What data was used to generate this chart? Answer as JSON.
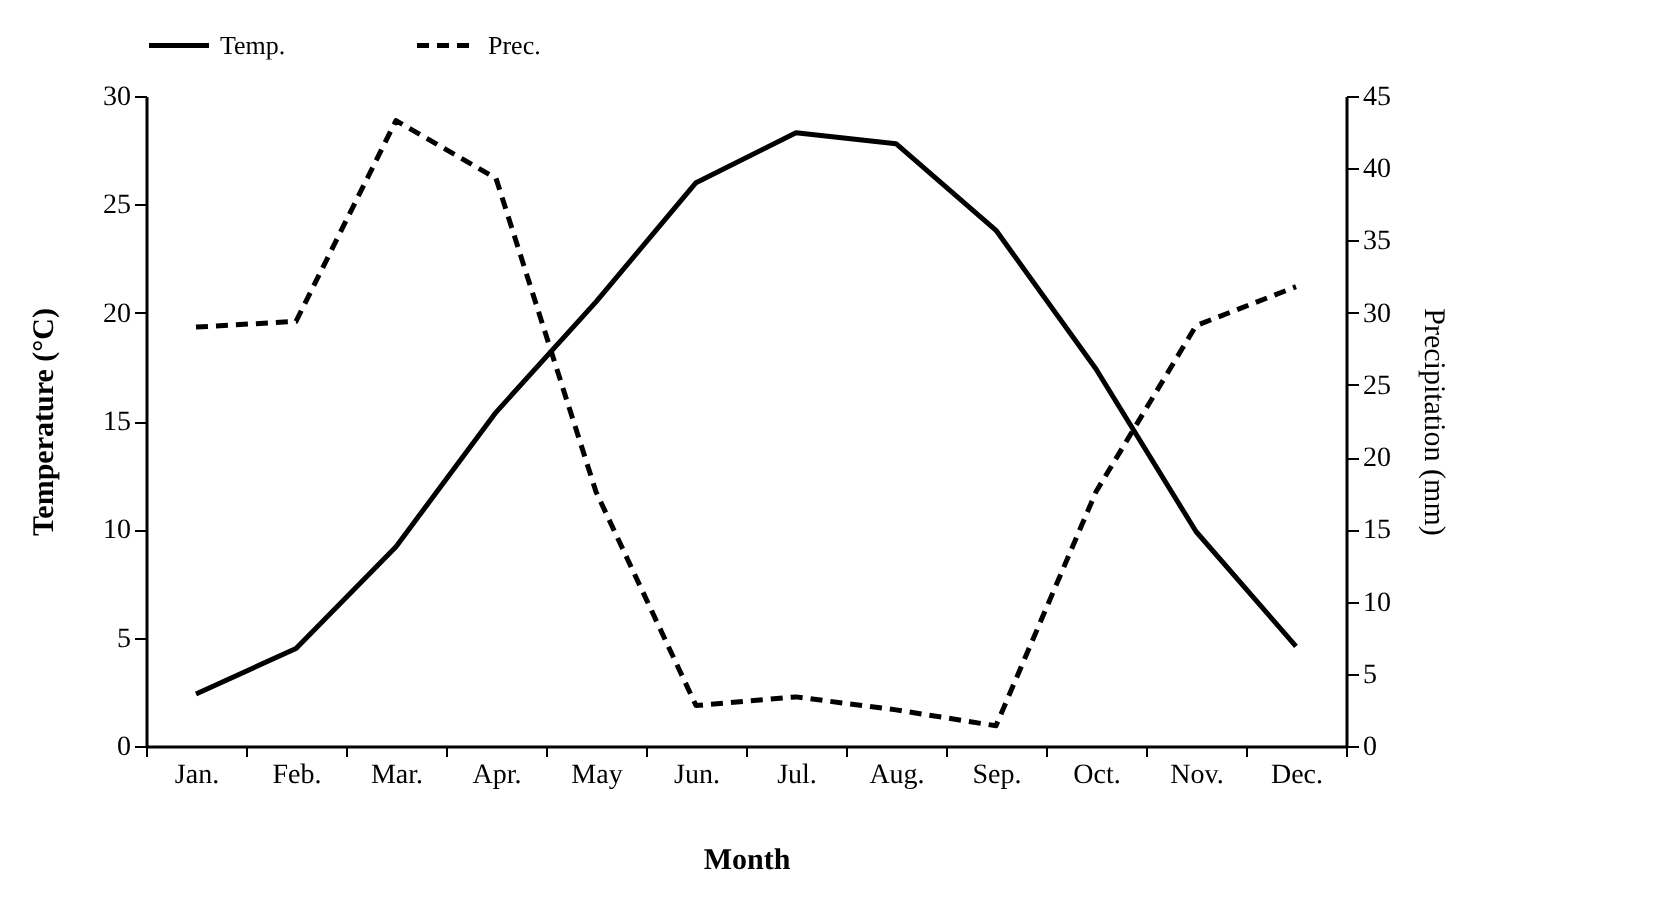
{
  "chart_data": {
    "type": "line",
    "xlabel": "Month",
    "ylabel": "Temperature (°C)",
    "y2label": "Precipitation (mm)",
    "categories": [
      "Jan.",
      "Feb.",
      "Mar.",
      "Apr.",
      "May",
      "Jun.",
      "Jul.",
      "Aug.",
      "Sep.",
      "Oct.",
      "Nov.",
      "Dec."
    ],
    "series": [
      {
        "name": "Temp.",
        "color": "#000000",
        "line_style": "solid",
        "values": [
          2.4,
          4.5,
          9.2,
          15.4,
          20.5,
          26.0,
          28.3,
          27.8,
          23.8,
          17.4,
          9.9,
          4.6
        ]
      },
      {
        "name": "Prec.",
        "color": "#000000",
        "line_style": "dashed",
        "axis": "y2",
        "values": [
          29.0,
          29.4,
          43.3,
          39.3,
          17.6,
          2.8,
          3.4,
          2.5,
          1.4,
          17.6,
          29.1,
          31.8
        ]
      }
    ],
    "ylim": [
      0,
      30
    ],
    "yticks": [
      0,
      5,
      10,
      15,
      20,
      25,
      30
    ],
    "y2lim": [
      0,
      45
    ],
    "y2ticks": [
      0,
      5,
      10,
      15,
      20,
      25,
      30,
      35,
      40,
      45
    ],
    "grid": false,
    "legend": "top",
    "marker": "none"
  }
}
